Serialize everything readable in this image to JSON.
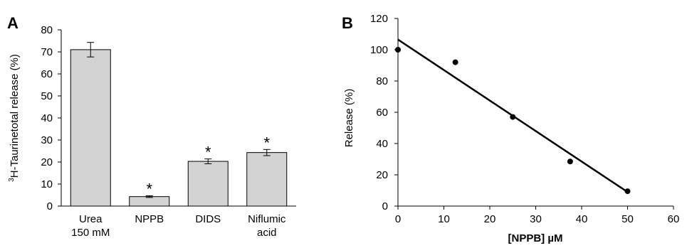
{
  "chart_data": [
    {
      "panel_label": "A",
      "type": "bar",
      "categories": [
        [
          "Urea",
          "150 mM"
        ],
        [
          "NPPB"
        ],
        [
          "DIDS"
        ],
        [
          "Niflumic",
          "acid"
        ]
      ],
      "values": [
        71,
        4.3,
        20.3,
        24.3
      ],
      "errors": [
        3.3,
        0.4,
        1.1,
        1.4
      ],
      "significance": [
        "",
        "*",
        "*",
        "*"
      ],
      "ylabel_sup": "3",
      "ylabel": "H-Taurinetotal release (%)",
      "xlabel": "",
      "ylim": [
        0,
        80
      ],
      "yticks": [
        0,
        10,
        20,
        30,
        40,
        50,
        60,
        70,
        80
      ],
      "bar_color": "#d3d3d3",
      "grid": false,
      "legend": "none"
    },
    {
      "panel_label": "B",
      "type": "scatter",
      "x": [
        0,
        12.5,
        25,
        37.5,
        50
      ],
      "y": [
        100,
        92,
        57,
        28.5,
        9.5
      ],
      "fit_line": {
        "x": [
          0,
          50
        ],
        "y": [
          106.5,
          9
        ]
      },
      "xlabel": "[NPPB] µM",
      "ylabel": "Release (%)",
      "xlim": [
        0,
        60
      ],
      "ylim": [
        0,
        120
      ],
      "xticks": [
        0,
        10,
        20,
        30,
        40,
        50,
        60
      ],
      "yticks": [
        0,
        20,
        40,
        60,
        80,
        100,
        120
      ],
      "marker_color": "#000000",
      "grid": false,
      "legend": "none"
    }
  ]
}
